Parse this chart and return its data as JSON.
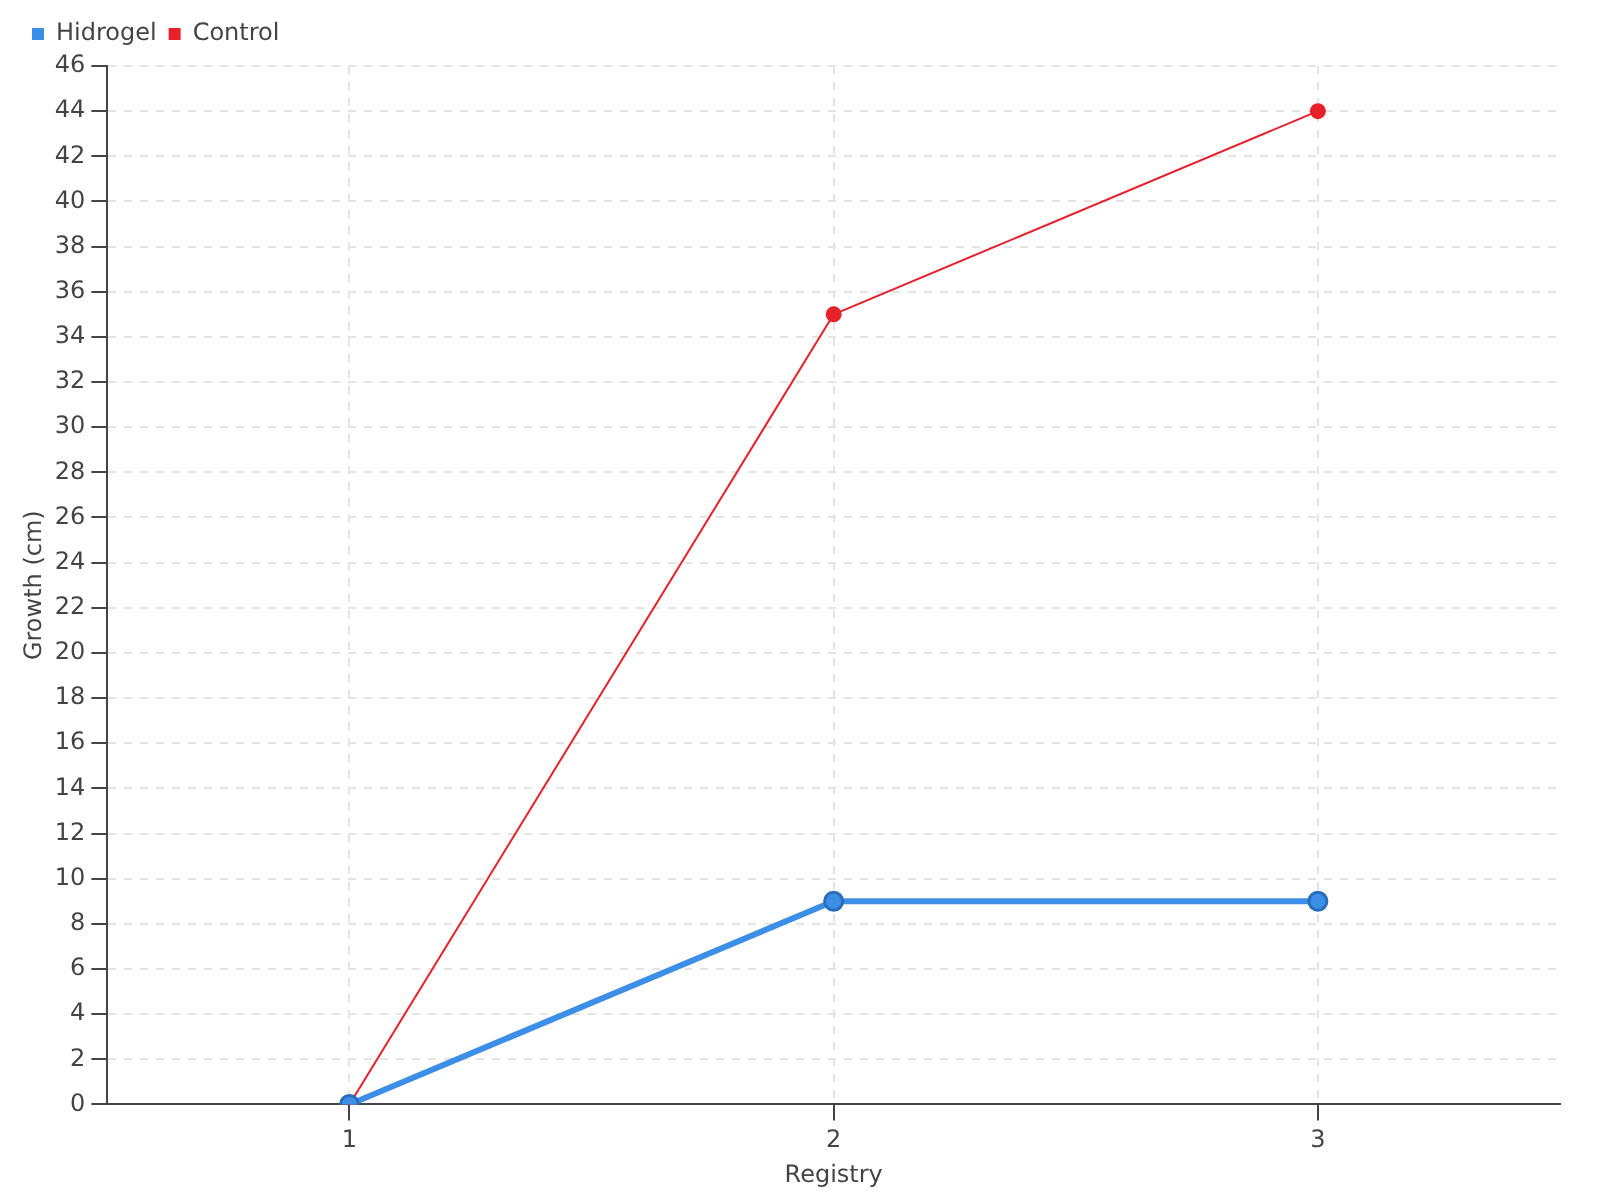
{
  "chart_data": {
    "type": "line",
    "xlabel": "Registry",
    "ylabel": "Growth (cm)",
    "categories": [
      "1",
      "2",
      "3"
    ],
    "series": [
      {
        "name": "Hidrogel",
        "color": "#3d8ee6",
        "values": [
          0,
          9,
          9
        ]
      },
      {
        "name": "Control",
        "color": "#e8202a",
        "values": [
          0,
          35,
          44
        ]
      }
    ],
    "ylim": [
      0,
      46
    ],
    "yticks": [
      0,
      2,
      4,
      6,
      8,
      10,
      12,
      14,
      16,
      18,
      20,
      22,
      24,
      26,
      28,
      30,
      32,
      34,
      36,
      38,
      40,
      42,
      44,
      46
    ],
    "grid": true,
    "legend": "top left",
    "marker": "circle",
    "line_style": "solid"
  }
}
